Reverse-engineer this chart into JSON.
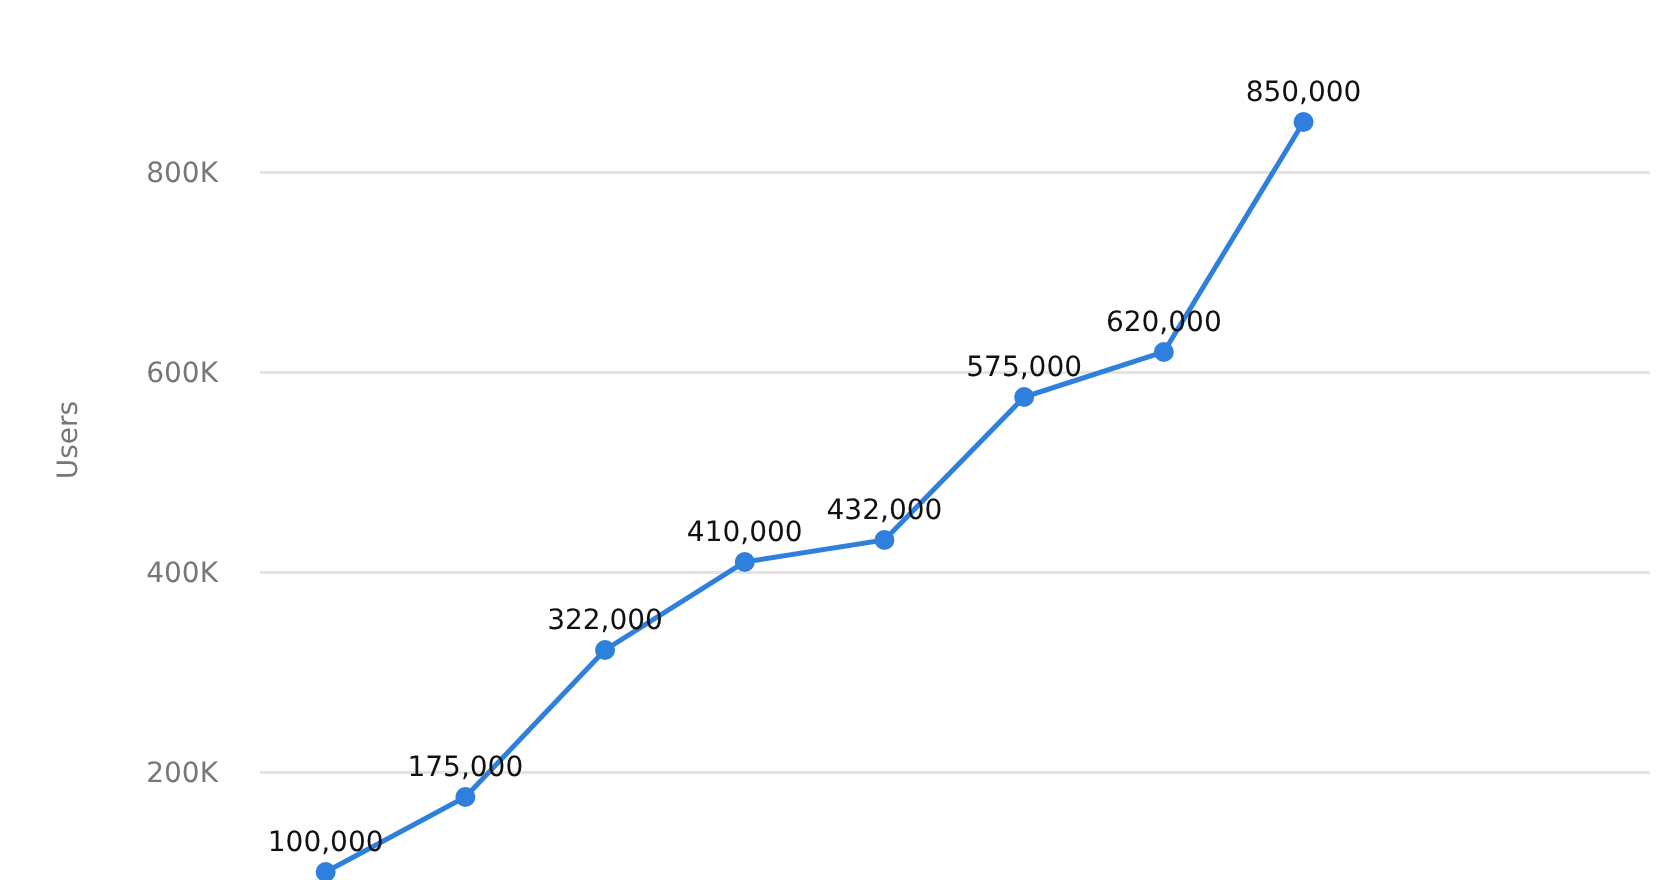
{
  "chart_data": {
    "type": "line",
    "ylabel": "Users",
    "categories": [
      null,
      null,
      null,
      null,
      null,
      null,
      null,
      null
    ],
    "series": [
      {
        "color": "#2f7fdc",
        "values": [
          100000,
          175000,
          322000,
          410000,
          432000,
          575000,
          620000,
          850000
        ],
        "value_labels": [
          "100,000",
          "175,000",
          "322,000",
          "410,000",
          "432,000",
          "575,000",
          "620,000",
          "850,000"
        ]
      }
    ],
    "ylim": [
      92000,
      972000
    ],
    "yticks": [
      {
        "value": 200000,
        "label": "200K"
      },
      {
        "value": 400000,
        "label": "400K"
      },
      {
        "value": 600000,
        "label": "600K"
      },
      {
        "value": 800000,
        "label": "800K"
      }
    ],
    "grid": "y",
    "marker": "circle",
    "line_style": "solid",
    "tick_labels": "y"
  }
}
